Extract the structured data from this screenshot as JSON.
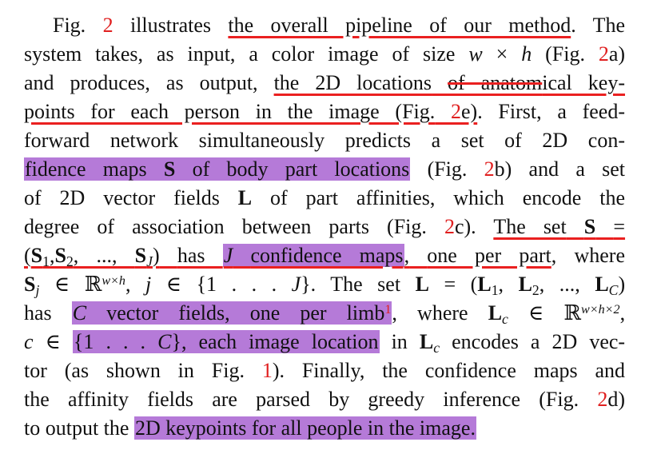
{
  "paragraph": {
    "line1": {
      "fig_label": "Fig.",
      "ref": "2",
      "text_a": "illustrates",
      "underlined": "the overall pipeline of our method",
      "text_b": ". The"
    },
    "line2": {
      "text": "system takes, as input, a color image of size",
      "math_w": "w",
      "times": "×",
      "math_h": "h",
      "paren_open": "(Fig.",
      "ref": "2",
      "ref_tail": "a)"
    },
    "line3": {
      "text_a": "and produces, as output,",
      "ul_a": "the 2D locations",
      "struck": "of anatom",
      "ul_b": "ical key-"
    },
    "line4": {
      "underlined_a": "points for each person in the image (Fig.",
      "ref": "2",
      "underlined_b": "e)",
      "text_b": ". First, a feed-"
    },
    "line5": {
      "text": "forward network simultaneously predicts a set of 2D con-"
    },
    "line6": {
      "highlight_a": "fidence maps",
      "bold_S": "S",
      "highlight_b": "of body part locations",
      "paren": "(Fig.",
      "ref": "2",
      "text": "b) and a set"
    },
    "line7": {
      "text_a": "of 2D vector fields",
      "bold_L": "L",
      "text_b": "of part affinities, which encode the"
    },
    "line8": {
      "text_a": "degree of association between parts (Fig.",
      "ref": "2",
      "text_b": "c).",
      "underlined": "The set",
      "bold_S": "S",
      "eq": "="
    },
    "line9": {
      "paren": "(",
      "S": "S",
      "s1": "1",
      "comma1": ",",
      "s2": "2",
      "dots": ", ...,",
      "J_sub": "J",
      "close": ")",
      "has": "has",
      "J": "J",
      "highlight": "confidence maps",
      "comma": ",",
      "underlined": "one per part",
      "rest": ", where"
    },
    "line10": {
      "S": "S",
      "j": "j",
      "in": "∈",
      "R": "ℝ",
      "exp": "w×h",
      "comma": ",",
      "jvar": "j",
      "in2": "∈",
      "set": "{1 . . .",
      "J": "J",
      "set_close": "}.",
      "text": "The set",
      "L": "L",
      "eq": "=",
      "paren": "(",
      "L1": "L",
      "s1": "1",
      "L2": "L",
      "s2": "2",
      "dots": ", ...,",
      "LC": "L",
      "sC": "C",
      "close": ")"
    },
    "line11": {
      "has": "has",
      "C": "C",
      "highlight": "vector fields, one per limb",
      "fn": "1",
      "comma": ",",
      "where": "where",
      "L": "L",
      "c": "c",
      "in": "∈",
      "R": "ℝ",
      "exp": "w×h×2",
      "tail": ","
    },
    "line12": {
      "c": "c",
      "in": "∈",
      "hl_set": "{1 . . .",
      "C": "C",
      "hl_rest": "}, each image location",
      "in2": "in",
      "L": "L",
      "csub": "c",
      "text": "encodes a 2D vec-"
    },
    "line13": {
      "text_a": "tor (as shown in Fig.",
      "ref": "1",
      "text_b": "). Finally, the confidence maps and"
    },
    "line14": {
      "text_a": "the affinity fields are parsed by greedy inference (Fig.",
      "ref": "2",
      "text_b": "d)"
    },
    "line15": {
      "text_a": "to output the",
      "highlight": "2D keypoints for all people in the image",
      "period": "."
    }
  },
  "colors": {
    "reference": "#e02020",
    "highlight": "#b57ad8",
    "annotation_line": "#ea2020",
    "text": "#111111",
    "background": "#ffffff"
  }
}
